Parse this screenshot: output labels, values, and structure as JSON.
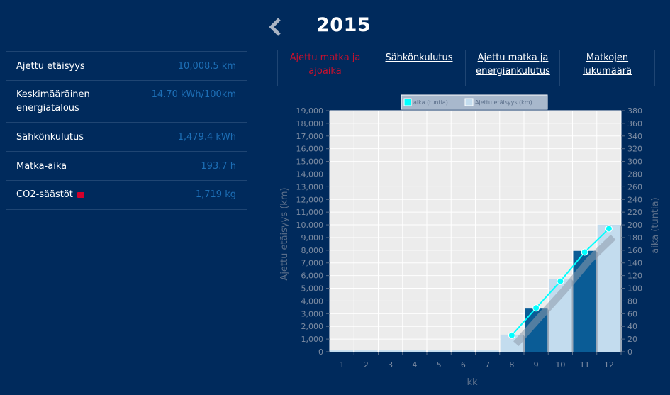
{
  "header": {
    "year": "2015",
    "prev_icon": "chevron-left-icon"
  },
  "stats": [
    {
      "label": "Ajettu etäisyys",
      "value": "10,008.5 km"
    },
    {
      "label": "Keskimääräinen energiatalous",
      "value": "14.70 kWh/100km"
    },
    {
      "label": "Sähkönkulutus",
      "value": "1,479.4 kWh"
    },
    {
      "label": "Matka-aika",
      "value": "193.7 h"
    },
    {
      "label": "CO2-säästöt",
      "value": "1,719 kg"
    }
  ],
  "tabs": [
    {
      "label": "Ajettu matka ja ajoaika",
      "active": true
    },
    {
      "label": "Sähkönkulutus",
      "active": false
    },
    {
      "label": "Ajettu matka ja energiankulutus",
      "active": false
    },
    {
      "label": "Matkojen lukumäärä",
      "active": false
    }
  ],
  "colors": {
    "background": "#002a5c",
    "accent_blue": "#1d6fb6",
    "active_tab": "#c8102e",
    "line": "#00ffff"
  },
  "chart_data": {
    "type": "bar+line",
    "legend": [
      "aika (tuntia)",
      "Ajettu etäisyys (km)"
    ],
    "xlabel": "kk",
    "ylabel_left": "Ajettu etäisyys (km)",
    "ylabel_right": "aika (tuntia)",
    "categories": [
      "1",
      "2",
      "3",
      "4",
      "5",
      "6",
      "7",
      "8",
      "9",
      "10",
      "11",
      "12"
    ],
    "ylim_left": [
      0,
      19000
    ],
    "ylim_right": [
      0,
      380
    ],
    "left_ticks": [
      "0",
      "1,000",
      "2,000",
      "3,000",
      "4,000",
      "5,000",
      "6,000",
      "7,000",
      "8,000",
      "9,000",
      "10,000",
      "11,000",
      "12,000",
      "13,000",
      "14,000",
      "15,000",
      "16,000",
      "17,000",
      "18,000",
      "19,000"
    ],
    "right_ticks": [
      "0",
      "20",
      "40",
      "60",
      "80",
      "100",
      "120",
      "140",
      "160",
      "180",
      "200",
      "220",
      "240",
      "260",
      "280",
      "300",
      "320",
      "340",
      "360",
      "380"
    ],
    "bars": [
      {
        "x": "1",
        "value": 0
      },
      {
        "x": "2",
        "value": 0
      },
      {
        "x": "3",
        "value": 0
      },
      {
        "x": "4",
        "value": 0
      },
      {
        "x": "5",
        "value": 0
      },
      {
        "x": "6",
        "value": 0
      },
      {
        "x": "7",
        "value": 0
      },
      {
        "x": "8",
        "value": 1350
      },
      {
        "x": "9",
        "value": 3400
      },
      {
        "x": "10",
        "value": 5700
      },
      {
        "x": "11",
        "value": 7950
      },
      {
        "x": "12",
        "value": 10009
      }
    ],
    "line": [
      {
        "x": "8",
        "value": 26
      },
      {
        "x": "9",
        "value": 69
      },
      {
        "x": "10",
        "value": 111
      },
      {
        "x": "11",
        "value": 157
      },
      {
        "x": "12",
        "value": 194
      }
    ],
    "grid": true,
    "legend_position": "top"
  }
}
